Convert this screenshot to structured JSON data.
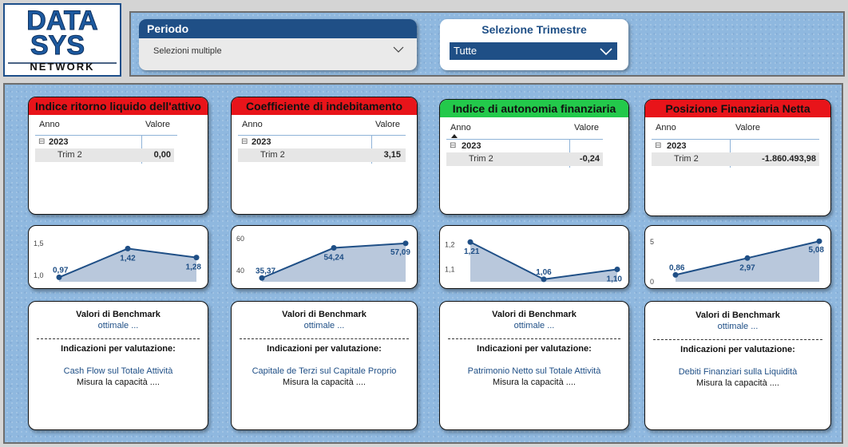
{
  "logo": {
    "line1": "DATA",
    "line2": "SYS",
    "line3": "NETWORK"
  },
  "filters": {
    "periodo": {
      "label": "Periodo",
      "value": "Selezioni multiple"
    },
    "trimestre": {
      "label": "Selezione Trimestre",
      "value": "Tutte"
    }
  },
  "colors": {
    "header_blue": "#1f4f86",
    "kpi_red": "#e8141a",
    "kpi_green": "#23c94b",
    "chart_line": "#1f4f86",
    "chart_fill": "#b9c8dc"
  },
  "kpis": [
    {
      "title": "Indice ritorno liquido dell'attivo",
      "header_color": "red",
      "col_anno": "Anno",
      "col_valore": "Valore",
      "year": "2023",
      "period": "Trim 2",
      "value": "0,00",
      "benchmark_title": "Valori di Benchmark",
      "benchmark_value": "ottimale ...",
      "indications_title": "Indicazioni per valutazione:",
      "indication_link": "Cash Flow sul Totale Attività",
      "indication_text": "Misura la capacità ...."
    },
    {
      "title": "Coefficiente di indebitamento",
      "header_color": "red",
      "col_anno": "Anno",
      "col_valore": "Valore",
      "year": "2023",
      "period": "Trim 2",
      "value": "3,15",
      "benchmark_title": "Valori di Benchmark",
      "benchmark_value": "ottimale ...",
      "indications_title": "Indicazioni per valutazione:",
      "indication_link": "Capitale de Terzi sul Capitale Proprio",
      "indication_text": "Misura la capacità ...."
    },
    {
      "title": "Indice di autonomia finanziaria",
      "header_color": "green",
      "col_anno": "Anno",
      "col_valore": "Valore",
      "year": "2023",
      "period": "Trim 2",
      "value": "-0,24",
      "benchmark_title": "Valori di Benchmark",
      "benchmark_value": "ottimale ...",
      "indications_title": "Indicazioni per valutazione:",
      "indication_link": "Patrimonio Netto sul Totale Attività",
      "indication_text": "Misura la capacità ...."
    },
    {
      "title": "Posizione Finanziaria Netta",
      "header_color": "red",
      "col_anno": "Anno",
      "col_valore": "Valore",
      "year": "2023",
      "period": "Trim 2",
      "value": "-1.860.493,98",
      "benchmark_title": "Valori di Benchmark",
      "benchmark_value": "ottimale ...",
      "indications_title": "Indicazioni per valutazione:",
      "indication_link": "Debiti Finanziari sulla Liquidità",
      "indication_text": "Misura la capacità ...."
    }
  ],
  "chart_data": [
    {
      "type": "area",
      "values": [
        0.97,
        1.42,
        1.28
      ],
      "labels": [
        "0,97",
        "1,42",
        "1,28"
      ],
      "yticks": [
        1.0,
        1.5
      ],
      "ytick_labels": [
        "1,0",
        "1,5"
      ],
      "ylim": [
        0.9,
        1.6
      ]
    },
    {
      "type": "area",
      "values": [
        35.37,
        54.24,
        57.09
      ],
      "labels": [
        "35,37",
        "54,24",
        "57,09"
      ],
      "yticks": [
        40,
        60
      ],
      "ytick_labels": [
        "40",
        "60"
      ],
      "ylim": [
        33,
        61
      ]
    },
    {
      "type": "area",
      "values": [
        1.21,
        1.06,
        1.1
      ],
      "labels": [
        "1,21",
        "1,06",
        "1,10"
      ],
      "yticks": [
        1.1,
        1.2
      ],
      "ytick_labels": [
        "1,1",
        "1,2"
      ],
      "ylim": [
        1.05,
        1.23
      ]
    },
    {
      "type": "area",
      "values": [
        0.86,
        2.97,
        5.08
      ],
      "labels": [
        "0,86",
        "2,97",
        "5,08"
      ],
      "yticks": [
        0,
        5
      ],
      "ytick_labels": [
        "0",
        "5"
      ],
      "ylim": [
        0,
        5.6
      ]
    }
  ]
}
